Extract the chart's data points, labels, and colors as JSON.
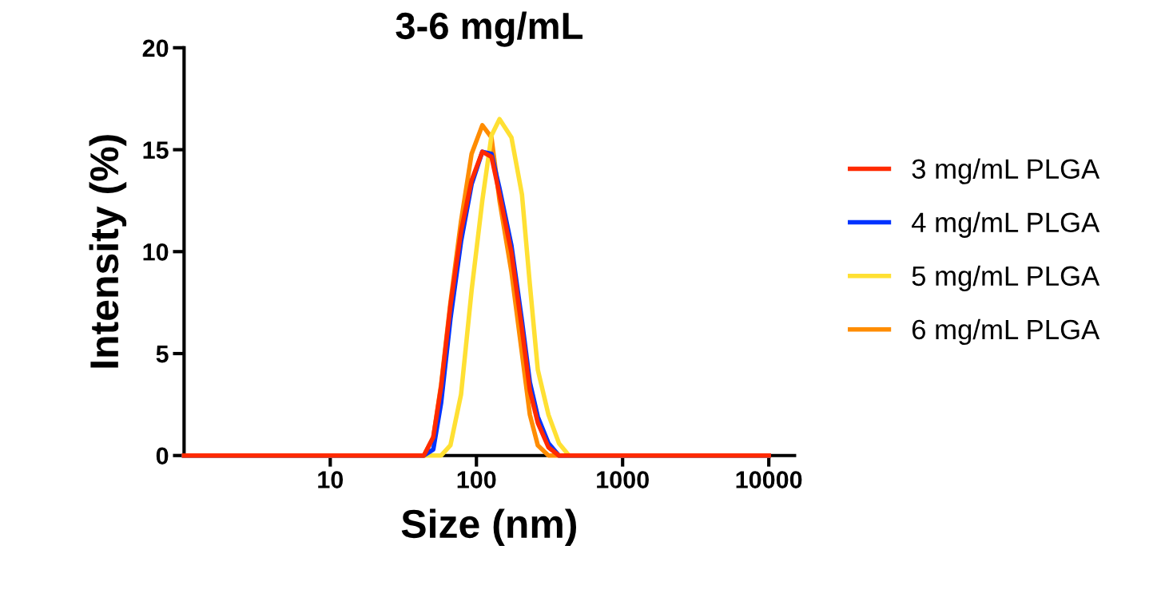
{
  "chart_data": {
    "type": "line",
    "title": "3-6 mg/mL",
    "xlabel": "Size (nm)",
    "ylabel": "Intensity (%)",
    "log": "x",
    "xlim": [
      1,
      15000
    ],
    "xticks": [
      10,
      100,
      1000,
      10000
    ],
    "ylim": [
      0,
      20
    ],
    "yticks": [
      0,
      5,
      10,
      15,
      20
    ],
    "grid": false,
    "legend": "right",
    "marker": "none",
    "line_style": "solid",
    "x": [
      1,
      43.7,
      50.7,
      57.4,
      66.4,
      78.5,
      92.7,
      109.7,
      126.8,
      143.9,
      173.6,
      204.9,
      232,
      263,
      311,
      367,
      430,
      10000
    ],
    "series": [
      {
        "name": "3 mg/mL PLGA",
        "color": "#ff2a00",
        "values": [
          0,
          0,
          0.9,
          3.4,
          7.35,
          11.0,
          13.5,
          14.9,
          14.65,
          12.8,
          9.95,
          6.2,
          3.2,
          1.6,
          0.4,
          0,
          0,
          0
        ]
      },
      {
        "name": "4 mg/mL PLGA",
        "color": "#0033ff",
        "values": [
          0,
          0,
          0.3,
          2.6,
          6.7,
          10.5,
          13.3,
          14.9,
          14.8,
          13.1,
          10.3,
          6.6,
          3.6,
          1.9,
          0.6,
          0,
          0,
          0
        ]
      },
      {
        "name": "5 mg/mL PLGA",
        "color": "#ffe033",
        "values": [
          0,
          0,
          0,
          0,
          0.5,
          3.0,
          8.1,
          12.5,
          15.7,
          16.5,
          15.6,
          12.8,
          8.4,
          4.2,
          2.0,
          0.6,
          0,
          0
        ]
      },
      {
        "name": "6 mg/mL PLGA",
        "color": "#ff8c00",
        "values": [
          0,
          0,
          0.9,
          3.5,
          7.5,
          11.5,
          14.8,
          16.2,
          15.6,
          12.5,
          9.0,
          5.0,
          2.0,
          0.5,
          0,
          0,
          0,
          0
        ]
      }
    ]
  }
}
